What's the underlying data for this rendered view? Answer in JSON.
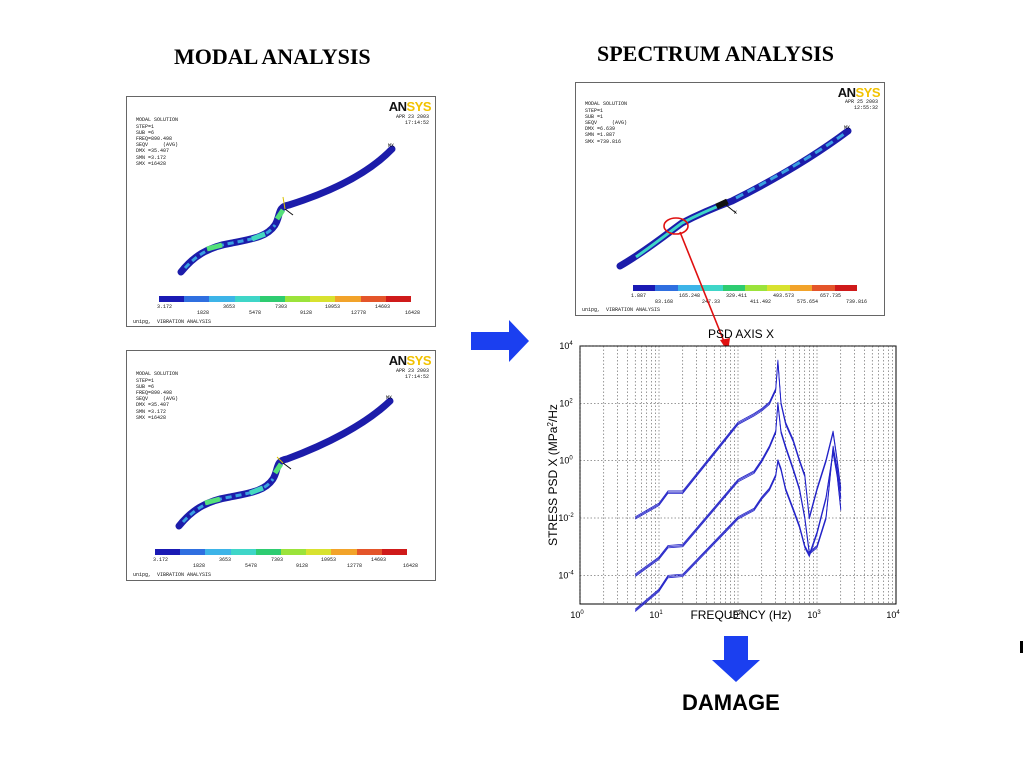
{
  "titles": {
    "modal": "MODAL ANALYSIS",
    "spectrum": "SPECTRUM ANALYSIS"
  },
  "modal_panels": [
    {
      "info": [
        "MODAL SOLUTION",
        "",
        "STEP=1",
        "SUB =6",
        "FREQ=890.498",
        "SEQV     (AVG)",
        "DMX =35.407",
        "SMN =3.172",
        "SMX =16428"
      ],
      "date": [
        "APR 23 2003",
        "17:14:52"
      ],
      "logo_an": "AN",
      "logo_sys": "SYS",
      "colorbar_top": [
        "3.172",
        "3653",
        "7303",
        "10953",
        "14603"
      ],
      "colorbar_bottom": [
        "1828",
        "5478",
        "9128",
        "12778",
        "16428"
      ],
      "footer": "unipg,  VIBRATION ANALYSIS"
    },
    {
      "info": [
        "MODAL SOLUTION",
        "",
        "STEP=1",
        "SUB =6",
        "FREQ=890.498",
        "SEQV     (AVG)",
        "DMX =35.407",
        "SMN =3.172",
        "SMX =16428"
      ],
      "date": [
        "APR 23 2003",
        "17:14:52"
      ],
      "logo_an": "AN",
      "logo_sys": "SYS",
      "colorbar_top": [
        "3.172",
        "3653",
        "7303",
        "10953",
        "14603"
      ],
      "colorbar_bottom": [
        "1828",
        "5478",
        "9128",
        "12778",
        "16428"
      ],
      "footer": "unipg,  VIBRATION ANALYSIS"
    }
  ],
  "spectrum_panel": {
    "info": [
      "MODAL SOLUTION",
      "",
      "STEP=1",
      "SUB =1",
      "SEQV     (AVG)",
      "DMX =6.639",
      "SMN =1.887",
      "SMX =739.816"
    ],
    "date": [
      "APR 25 2003",
      "12:55:32"
    ],
    "logo_an": "AN",
    "logo_sys": "SYS",
    "colorbar_top": [
      "1.887",
      "165.248",
      "329.411",
      "493.573",
      "657.735"
    ],
    "colorbar_bottom": [
      "83.168",
      "247.33",
      "411.492",
      "575.654",
      "739.816"
    ],
    "footer": "unipg,  VIBRATION ANALYSIS"
  },
  "colorbar_colors": [
    "#1a1ab4",
    "#2f6fe0",
    "#3db4e8",
    "#3fd6c8",
    "#2ecc71",
    "#9be33b",
    "#d8e22f",
    "#f2a32a",
    "#e4552a",
    "#cf1a1a"
  ],
  "psd_chart": {
    "title": "PSD AXIS X",
    "xlabel": "FREQUENCY (Hz)",
    "ylabel_main": "STRESS PSD X (MPa",
    "ylabel_sup": "2",
    "ylabel_tail": "/Hz",
    "x_tick_mantissa": "10",
    "x_tick_exponents": [
      "0",
      "1",
      "2",
      "3",
      "4"
    ],
    "y_tick_exponents": [
      "-4",
      "-2",
      "0",
      "2",
      "4"
    ]
  },
  "chart_data": {
    "type": "line",
    "title": "PSD AXIS X",
    "xlabel": "FREQUENCY (Hz)",
    "ylabel": "STRESS PSD X (MPa^2/Hz)",
    "x_scale": "log",
    "y_scale": "log",
    "xlim": [
      1,
      10000
    ],
    "ylim": [
      1e-05,
      10000
    ],
    "grid": true,
    "series": [
      {
        "x": [
          5,
          10,
          13,
          20,
          100,
          160,
          200,
          250,
          300,
          320,
          350,
          400,
          500,
          600,
          700,
          800,
          1000,
          1300,
          1600,
          1800,
          2000
        ],
        "y": [
          0.01,
          0.03,
          0.08,
          0.08,
          20,
          40,
          60,
          100,
          300,
          3000,
          100,
          20,
          5,
          1.0,
          0.3,
          0.01,
          0.1,
          1,
          10,
          1,
          0.1
        ]
      },
      {
        "x": [
          5,
          10,
          13,
          20,
          100,
          160,
          200,
          250,
          300,
          320,
          350,
          400,
          500,
          600,
          700,
          800,
          1000,
          1300,
          1600,
          1800,
          2000
        ],
        "y": [
          0.0001,
          0.0004,
          0.001,
          0.0011,
          0.2,
          0.4,
          1,
          3,
          10,
          100,
          10,
          3,
          0.5,
          0.1,
          0.01,
          0.0006,
          0.001,
          0.01,
          3,
          0.5,
          0.05
        ]
      },
      {
        "x": [
          5,
          10,
          13,
          20,
          100,
          160,
          200,
          250,
          300,
          320,
          350,
          400,
          500,
          600,
          700,
          800,
          1000,
          1300,
          1600,
          1800,
          2000
        ],
        "y": [
          6e-06,
          3e-05,
          9e-05,
          0.0001,
          0.01,
          0.02,
          0.05,
          0.1,
          0.3,
          1,
          0.5,
          0.1,
          0.02,
          0.005,
          0.001,
          0.0005,
          0.003,
          0.05,
          2,
          0.3,
          0.02
        ]
      }
    ]
  },
  "damage_label": "DAMAGE"
}
